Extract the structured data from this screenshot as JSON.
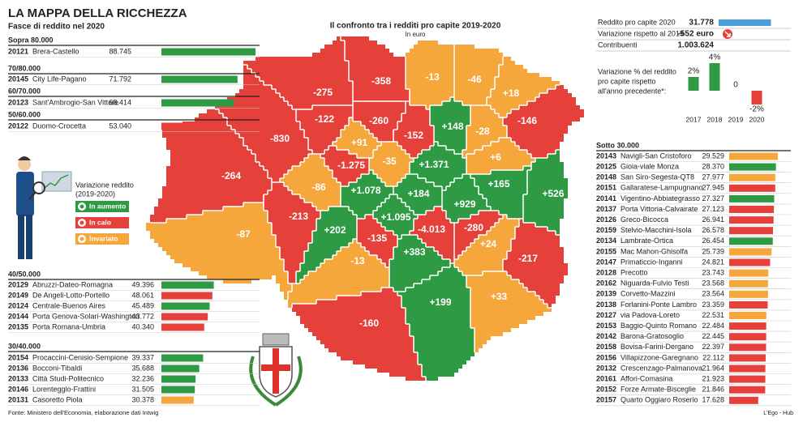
{
  "header": {
    "title": "LA MAPPA DELLA RICCHEZZA",
    "subtitle": "Fasce di reddito nel 2020"
  },
  "legend": {
    "title": "Variazione reddito",
    "subtitle": "(2019-2020)",
    "items": [
      {
        "label": "In aumento",
        "color": "#2f9a44"
      },
      {
        "label": "In calo",
        "color": "#e5413a"
      },
      {
        "label": "Invariato",
        "color": "#f6a73c"
      }
    ]
  },
  "income_bands": [
    {
      "label": "Sopra 80.000",
      "rows": [
        {
          "zip": "20121",
          "name": "Brera-Castello",
          "value": 88745,
          "value_label": "88.745",
          "color": "#2f9a44"
        }
      ]
    },
    {
      "label": "70/80.000",
      "rows": [
        {
          "zip": "20145",
          "name": "City Life-Pagano",
          "value": 71792,
          "value_label": "71.792",
          "color": "#2f9a44"
        }
      ]
    },
    {
      "label": "60/70.000",
      "rows": [
        {
          "zip": "20123",
          "name": "Sant'Ambrogio-San Vittore",
          "value": 68414,
          "value_label": "68.414",
          "color": "#2f9a44"
        }
      ]
    },
    {
      "label": "50/60.000",
      "rows": [
        {
          "zip": "20122",
          "name": "Duomo-Crocetta",
          "value": 53040,
          "value_label": "53.040",
          "color": "#e5413a"
        }
      ]
    },
    {
      "label": "40/50.000",
      "rows": [
        {
          "zip": "20129",
          "name": "Abruzzi-Dateo-Romagna",
          "value": 49396,
          "value_label": "49.396",
          "color": "#2f9a44"
        },
        {
          "zip": "20149",
          "name": "De Angeli-Lotto-Portello",
          "value": 48061,
          "value_label": "48.061",
          "color": "#e5413a"
        },
        {
          "zip": "20124",
          "name": "Centrale-Buenos Aires",
          "value": 45489,
          "value_label": "45.489",
          "color": "#2f9a44"
        },
        {
          "zip": "20144",
          "name": "Porta Genova-Solari-Washington",
          "value": 43772,
          "value_label": "43.772",
          "color": "#e5413a"
        },
        {
          "zip": "20135",
          "name": "Porta Romana-Umbria",
          "value": 40340,
          "value_label": "40.340",
          "color": "#e5413a"
        }
      ]
    },
    {
      "label": "30/40.000",
      "rows": [
        {
          "zip": "20154",
          "name": "Procaccini-Cenisio-Sempione",
          "value": 39337,
          "value_label": "39.337",
          "color": "#2f9a44"
        },
        {
          "zip": "20136",
          "name": "Bocconi-Tibaldi",
          "value": 35688,
          "value_label": "35.688",
          "color": "#2f9a44"
        },
        {
          "zip": "20133",
          "name": "Città Studi-Politecnico",
          "value": 32236,
          "value_label": "32.236",
          "color": "#2f9a44"
        },
        {
          "zip": "20146",
          "name": "Lorenteggio-Frattini",
          "value": 31505,
          "value_label": "31.505",
          "color": "#2f9a44"
        },
        {
          "zip": "20131",
          "name": "Casoretto Piola",
          "value": 30378,
          "value_label": "30.378",
          "color": "#f6a73c"
        }
      ]
    }
  ],
  "top_stats": {
    "income": {
      "label": "Reddito pro capite 2020",
      "value": 31778,
      "value_label": "31.778",
      "color": "#4a9fd8"
    },
    "change": {
      "label": "Variazione rispetto al 2019",
      "value": -552,
      "value_label": "-552 euro"
    },
    "taxpayers": {
      "label": "Contribuenti",
      "value": 1003624,
      "value_label": "1.003.624"
    }
  },
  "chart_data": {
    "type": "bar",
    "title_lines": [
      "Variazione % del reddito",
      "pro capite rispetto",
      "all'anno precedente*:"
    ],
    "categories": [
      "2017",
      "2018",
      "2019",
      "2020"
    ],
    "values": [
      2,
      4,
      0,
      -2
    ],
    "value_labels": [
      "2%",
      "4%",
      "0",
      "-2%"
    ],
    "colors": [
      "#2f9a44",
      "#2f9a44",
      "#2f9a44",
      "#e5413a"
    ]
  },
  "map": {
    "title": "Il confronto tra i redditi pro capite 2019-2020",
    "subtitle": "In euro",
    "areas": [
      {
        "value": -830,
        "label": "-830",
        "color": "#e5413a"
      },
      {
        "value": -264,
        "label": "-264",
        "color": "#e5413a"
      },
      {
        "value": -275,
        "label": "-275",
        "color": "#e5413a"
      },
      {
        "value": -122,
        "label": "-122",
        "color": "#e5413a"
      },
      {
        "value": -358,
        "label": "-358",
        "color": "#e5413a"
      },
      {
        "value": -260,
        "label": "-260",
        "color": "#e5413a"
      },
      {
        "value": -13,
        "label": "-13",
        "color": "#f6a73c"
      },
      {
        "value": -46,
        "label": "-46",
        "color": "#f6a73c"
      },
      {
        "value": 18,
        "label": "+18",
        "color": "#f6a73c"
      },
      {
        "value": -146,
        "label": "-146",
        "color": "#e5413a"
      },
      {
        "value": 148,
        "label": "+148",
        "color": "#2f9a44"
      },
      {
        "value": -152,
        "label": "-152",
        "color": "#e5413a"
      },
      {
        "value": -28,
        "label": "-28",
        "color": "#f6a73c"
      },
      {
        "value": 91,
        "label": "+91",
        "color": "#f6a73c"
      },
      {
        "value": -1275,
        "label": "-1.275",
        "color": "#e5413a"
      },
      {
        "value": -35,
        "label": "-35",
        "color": "#f6a73c"
      },
      {
        "value": 1371,
        "label": "+1.371",
        "color": "#2f9a44"
      },
      {
        "value": 6,
        "label": "+6",
        "color": "#f6a73c"
      },
      {
        "value": -86,
        "label": "-86",
        "color": "#f6a73c"
      },
      {
        "value": 1078,
        "label": "+1.078",
        "color": "#2f9a44"
      },
      {
        "value": 184,
        "label": "+184",
        "color": "#2f9a44"
      },
      {
        "value": 165,
        "label": "+165",
        "color": "#2f9a44"
      },
      {
        "value": 526,
        "label": "+526",
        "color": "#2f9a44"
      },
      {
        "value": 929,
        "label": "+929",
        "color": "#2f9a44"
      },
      {
        "value": -213,
        "label": "-213",
        "color": "#e5413a"
      },
      {
        "value": 202,
        "label": "+202",
        "color": "#2f9a44"
      },
      {
        "value": 1095,
        "label": "+1.095",
        "color": "#2f9a44"
      },
      {
        "value": -4013,
        "label": "-4.013",
        "color": "#e5413a"
      },
      {
        "value": -280,
        "label": "-280",
        "color": "#e5413a"
      },
      {
        "value": -87,
        "label": "-87",
        "color": "#f6a73c"
      },
      {
        "value": -135,
        "label": "-135",
        "color": "#e5413a"
      },
      {
        "value": 24,
        "label": "+24",
        "color": "#f6a73c"
      },
      {
        "value": -217,
        "label": "-217",
        "color": "#e5413a"
      },
      {
        "value": 383,
        "label": "+383",
        "color": "#2f9a44"
      },
      {
        "value": -13,
        "label": "-13",
        "color": "#f6a73c"
      },
      {
        "value": 33,
        "label": "+33",
        "color": "#f6a73c"
      },
      {
        "value": 199,
        "label": "+199",
        "color": "#2f9a44"
      },
      {
        "value": -160,
        "label": "-160",
        "color": "#e5413a"
      }
    ]
  },
  "income_below": {
    "label": "Sotto 30.000",
    "rows": [
      {
        "zip": "20143",
        "name": "Navigli-San Cristoforo",
        "value": 29529,
        "value_label": "29.529",
        "color": "#f6a73c"
      },
      {
        "zip": "20125",
        "name": "Gioia-viale Monza",
        "value": 28370,
        "value_label": "28.370",
        "color": "#2f9a44"
      },
      {
        "zip": "20148",
        "name": "San Siro-Segesta-QT8",
        "value": 27977,
        "value_label": "27.977",
        "color": "#f6a73c"
      },
      {
        "zip": "20151",
        "name": "Gallaratese-Lampugnano",
        "value": 27945,
        "value_label": "27.945",
        "color": "#e5413a"
      },
      {
        "zip": "20141",
        "name": "Vigentino-Abbiategrasso",
        "value": 27327,
        "value_label": "27.327",
        "color": "#2f9a44"
      },
      {
        "zip": "20137",
        "name": "Porta Vittoria-Calvairate",
        "value": 27123,
        "value_label": "27.123",
        "color": "#e5413a"
      },
      {
        "zip": "20126",
        "name": "Greco-Bicocca",
        "value": 26941,
        "value_label": "26.941",
        "color": "#e5413a"
      },
      {
        "zip": "20159",
        "name": "Stelvio-Macchini-Isola",
        "value": 26578,
        "value_label": "26.578",
        "color": "#e5413a"
      },
      {
        "zip": "20134",
        "name": "Lambrate-Ortica",
        "value": 26454,
        "value_label": "26.454",
        "color": "#2f9a44"
      },
      {
        "zip": "20155",
        "name": "Mac Mahon-Ghisolfa",
        "value": 25739,
        "value_label": "25.739",
        "color": "#f6a73c"
      },
      {
        "zip": "20147",
        "name": "Primaticcio-Inganni",
        "value": 24821,
        "value_label": "24.821",
        "color": "#e5413a"
      },
      {
        "zip": "20128",
        "name": "Precotto",
        "value": 23743,
        "value_label": "23.743",
        "color": "#f6a73c"
      },
      {
        "zip": "20162",
        "name": "Niguarda-Fulvio Testi",
        "value": 23568,
        "value_label": "23.568",
        "color": "#f6a73c"
      },
      {
        "zip": "20139",
        "name": "Corvetto-Mazzini",
        "value": 23564,
        "value_label": "23.564",
        "color": "#f6a73c"
      },
      {
        "zip": "20138",
        "name": "Forlanini-Ponte Lambro",
        "value": 23359,
        "value_label": "23.359",
        "color": "#e5413a"
      },
      {
        "zip": "20127",
        "name": "via Padova-Loreto",
        "value": 22531,
        "value_label": "22.531",
        "color": "#f6a73c"
      },
      {
        "zip": "20153",
        "name": "Baggio-Quinto Romano",
        "value": 22484,
        "value_label": "22.484",
        "color": "#e5413a"
      },
      {
        "zip": "20142",
        "name": "Barona-Gratosoglio",
        "value": 22445,
        "value_label": "22.445",
        "color": "#e5413a"
      },
      {
        "zip": "20158",
        "name": "Bovisa-Farini-Dergano",
        "value": 22397,
        "value_label": "22.397",
        "color": "#e5413a"
      },
      {
        "zip": "20156",
        "name": "Villapizzone-Garegnano",
        "value": 22112,
        "value_label": "22.112",
        "color": "#e5413a"
      },
      {
        "zip": "20132",
        "name": "Crescenzago-Palmanova",
        "value": 21964,
        "value_label": "21.964",
        "color": "#e5413a"
      },
      {
        "zip": "20161",
        "name": "Affori-Comasina",
        "value": 21923,
        "value_label": "21.923",
        "color": "#e5413a"
      },
      {
        "zip": "20152",
        "name": "Forze Armate-Bisceglie",
        "value": 21846,
        "value_label": "21.846",
        "color": "#e5413a"
      },
      {
        "zip": "20157",
        "name": "Quarto Oggiaro Roserio",
        "value": 17628,
        "value_label": "17.628",
        "color": "#e5413a"
      }
    ]
  },
  "footer": {
    "source": "Fonte: Ministero dell'Economia, elaborazione dati Intwig",
    "credit": "L'Ego - Hub"
  }
}
